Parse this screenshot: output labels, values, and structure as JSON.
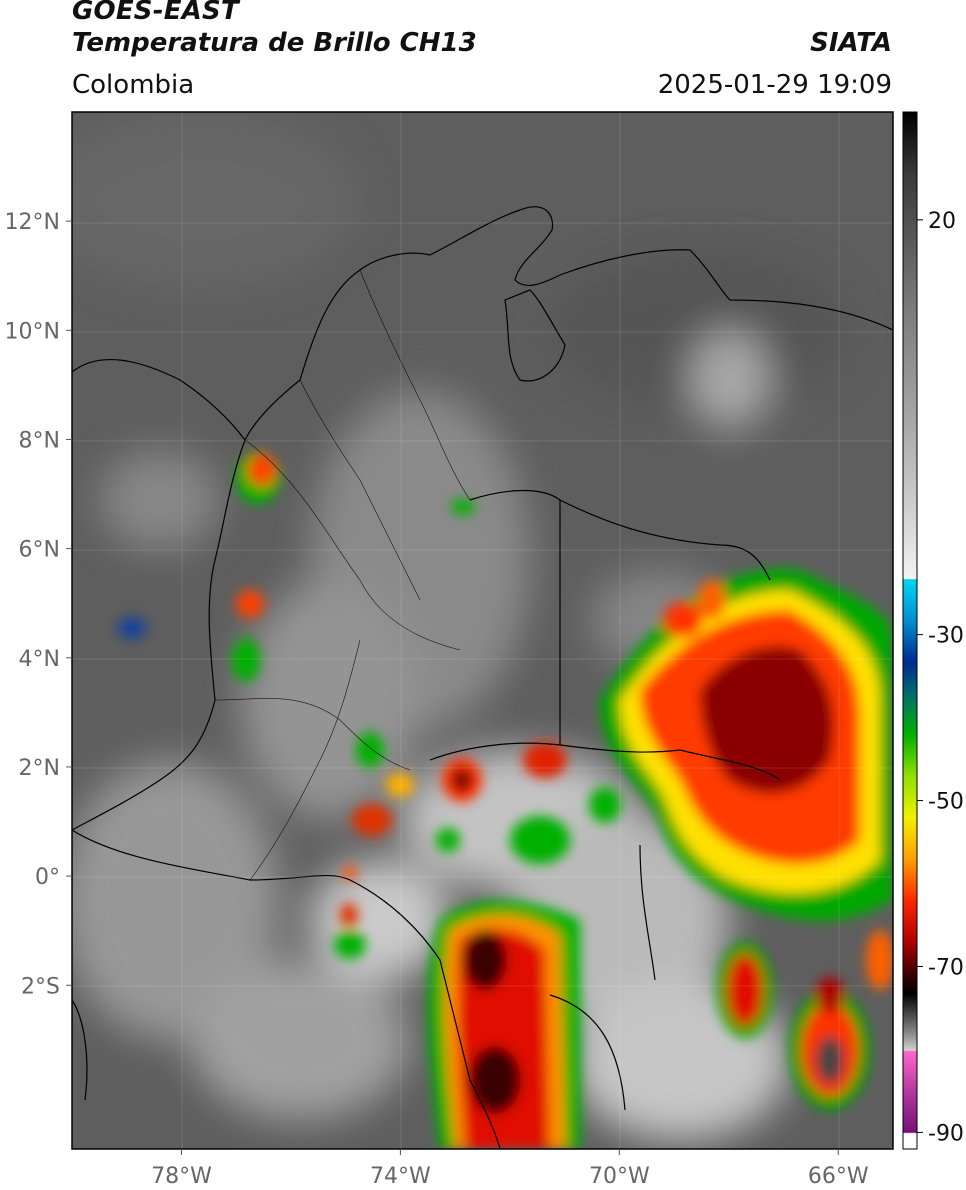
{
  "header": {
    "title": "GOES-EAST",
    "product": "Temperatura de Brillo CH13",
    "region": "Colombia",
    "organization": "SIATA",
    "datetime": "2025-01-29 19:09"
  },
  "map": {
    "lon_range": [
      -80,
      -65
    ],
    "lat_range": [
      -5,
      14
    ],
    "lat_ticks": [
      {
        "value": 12,
        "label": "12°N"
      },
      {
        "value": 10,
        "label": "10°N"
      },
      {
        "value": 8,
        "label": "8°N"
      },
      {
        "value": 6,
        "label": "6°N"
      },
      {
        "value": 4,
        "label": "4°N"
      },
      {
        "value": 2,
        "label": "2°N"
      },
      {
        "value": 0,
        "label": "0°"
      },
      {
        "value": -2,
        "label": "2°S"
      }
    ],
    "lon_ticks": [
      {
        "value": -78,
        "label": "78°W"
      },
      {
        "value": -74,
        "label": "74°W"
      },
      {
        "value": -70,
        "label": "70°W"
      },
      {
        "value": -66,
        "label": "66°W"
      }
    ]
  },
  "colorbar": {
    "range": [
      -92,
      33
    ],
    "ticks": [
      {
        "value": 20,
        "label": "20"
      },
      {
        "value": -30,
        "label": "-30"
      },
      {
        "value": -50,
        "label": "-50"
      },
      {
        "value": -70,
        "label": "-70"
      },
      {
        "value": -90,
        "label": "-90"
      }
    ]
  }
}
